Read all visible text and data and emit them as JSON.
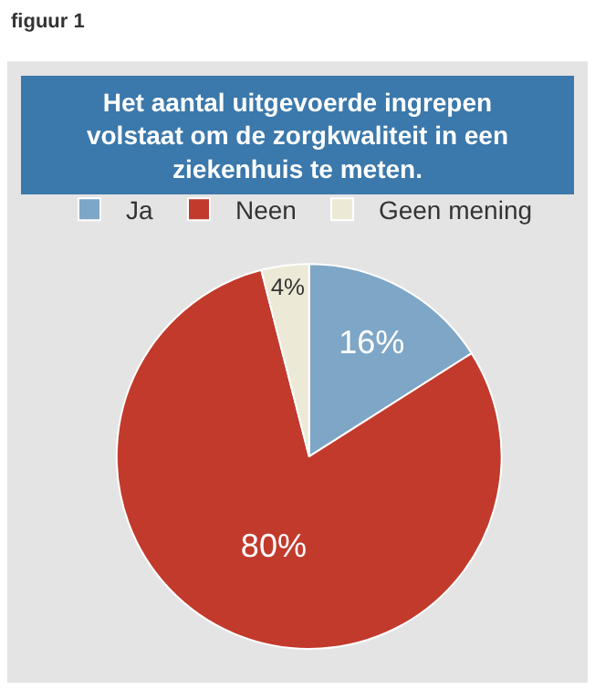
{
  "chart_data": {
    "type": "pie",
    "title": "Het aantal uitgevoerde ingrepen volstaat om de zorgkwaliteit in een ziekenhuis te meten.",
    "annotations": [
      "figuur 1"
    ],
    "categories": [
      "Ja",
      "Neen",
      "Geen mening"
    ],
    "values": [
      16,
      80,
      4
    ],
    "value_labels": [
      "16%",
      "80%",
      "4%"
    ],
    "colors": [
      "#7ea6c6",
      "#c23a2c",
      "#ece9d6"
    ],
    "legend": "top"
  }
}
